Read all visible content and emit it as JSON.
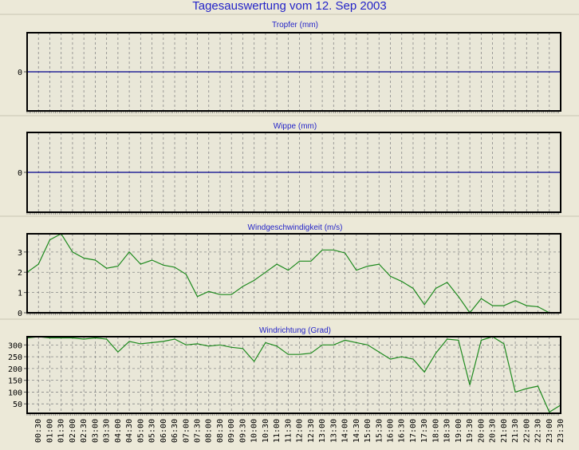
{
  "title": "Tagesauswertung vom 12. Sep 2003",
  "colors": {
    "title": "#2424c8",
    "series": "#1e8a1e",
    "zero_line": "#00008b",
    "background": "#ece9d8"
  },
  "x_tick_labels": [
    "00:30",
    "01:00",
    "01:30",
    "02:00",
    "02:30",
    "03:00",
    "03:30",
    "04:00",
    "04:30",
    "05:00",
    "05:30",
    "06:00",
    "06:30",
    "07:00",
    "07:30",
    "08:00",
    "08:30",
    "09:00",
    "09:30",
    "10:00",
    "10:30",
    "11:00",
    "11:30",
    "12:00",
    "12:30",
    "13:00",
    "13:30",
    "14:00",
    "14:30",
    "15:00",
    "15:30",
    "16:00",
    "16:30",
    "17:00",
    "17:30",
    "18:00",
    "18:30",
    "19:00",
    "19:30",
    "20:00",
    "20:30",
    "21:00",
    "21:30",
    "22:00",
    "22:30",
    "23:00",
    "23:30"
  ],
  "chart_data": [
    {
      "type": "line",
      "title": "Tropfer (mm)",
      "yticks": [
        0
      ],
      "ylim": [
        -1,
        1
      ],
      "grid": true,
      "x_interval_minutes": 30,
      "values": []
    },
    {
      "type": "line",
      "title": "Wippe (mm)",
      "yticks": [
        0
      ],
      "ylim": [
        -1,
        1
      ],
      "grid": true,
      "x_interval_minutes": 30,
      "values": []
    },
    {
      "type": "line",
      "title": "Windgeschwindigkeit (m/s)",
      "yticks": [
        0,
        1,
        2,
        3
      ],
      "ylim": [
        0,
        3.9
      ],
      "grid": true,
      "x_interval_minutes": 30,
      "x": [
        "00:00",
        "00:30",
        "01:00",
        "01:30",
        "02:00",
        "02:30",
        "03:00",
        "03:30",
        "04:00",
        "04:30",
        "05:00",
        "05:30",
        "06:00",
        "06:30",
        "07:00",
        "07:30",
        "08:00",
        "08:30",
        "09:00",
        "09:30",
        "10:00",
        "10:30",
        "11:00",
        "11:30",
        "12:00",
        "12:30",
        "13:00",
        "13:30",
        "14:00",
        "14:30",
        "15:00",
        "15:30",
        "16:00",
        "16:30",
        "17:00",
        "17:30",
        "18:00",
        "18:30",
        "19:00",
        "19:30",
        "20:00",
        "20:30",
        "21:00",
        "21:30",
        "22:00",
        "22:30",
        "23:00",
        "23:30"
      ],
      "values": [
        2.0,
        2.4,
        3.6,
        3.9,
        3.0,
        2.7,
        2.6,
        2.2,
        2.3,
        3.0,
        2.4,
        2.6,
        2.35,
        2.25,
        1.9,
        0.8,
        1.05,
        0.9,
        0.9,
        1.3,
        1.6,
        2.0,
        2.4,
        2.1,
        2.55,
        2.55,
        3.1,
        3.1,
        2.95,
        2.1,
        2.3,
        2.4,
        1.8,
        1.55,
        1.2,
        0.4,
        1.2,
        1.5,
        0.8,
        0.0,
        0.7,
        0.35,
        0.35,
        0.6,
        0.35,
        0.3,
        0.0,
        0.0
      ]
    },
    {
      "type": "line",
      "title": "Windrichtung (Grad)",
      "yticks": [
        50,
        100,
        150,
        200,
        250,
        300
      ],
      "ylim": [
        10,
        335
      ],
      "grid": true,
      "x_interval_minutes": 30,
      "x": [
        "00:00",
        "00:30",
        "01:00",
        "01:30",
        "02:00",
        "02:30",
        "03:00",
        "03:30",
        "04:00",
        "04:30",
        "05:00",
        "05:30",
        "06:00",
        "06:30",
        "07:00",
        "07:30",
        "08:00",
        "08:30",
        "09:00",
        "09:30",
        "10:00",
        "10:30",
        "11:00",
        "11:30",
        "12:00",
        "12:30",
        "13:00",
        "13:30",
        "14:00",
        "14:30",
        "15:00",
        "15:30",
        "16:00",
        "16:30",
        "17:00",
        "17:30",
        "18:00",
        "18:30",
        "19:00",
        "19:30",
        "20:00",
        "20:30",
        "21:00",
        "21:30",
        "22:00",
        "22:30",
        "23:00",
        "23:30"
      ],
      "values": [
        330,
        335,
        330,
        330,
        330,
        325,
        330,
        325,
        270,
        315,
        305,
        310,
        315,
        325,
        300,
        305,
        295,
        300,
        290,
        285,
        230,
        310,
        295,
        260,
        260,
        265,
        300,
        300,
        320,
        310,
        300,
        270,
        240,
        250,
        240,
        185,
        265,
        325,
        320,
        130,
        320,
        335,
        305,
        100,
        115,
        125,
        15,
        45
      ]
    }
  ]
}
